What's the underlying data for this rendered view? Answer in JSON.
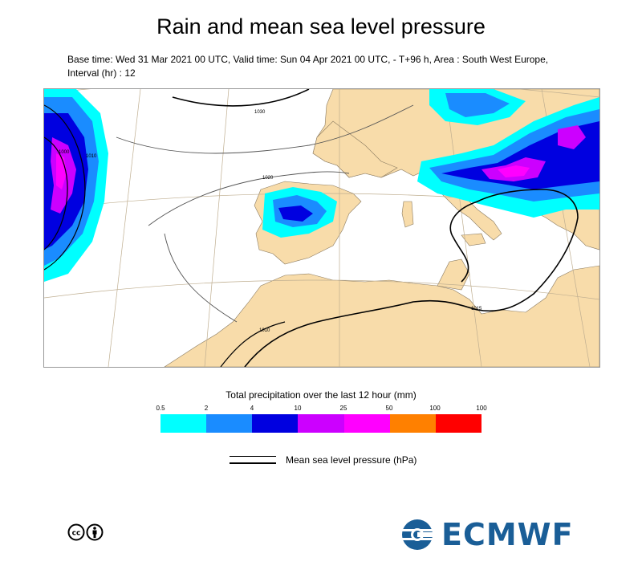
{
  "title": "Rain and mean sea level pressure",
  "subtitle": "Base time: Wed 31 Mar 2021 00 UTC, Valid time: Sun 04 Apr 2021 00 UTC, - T+96 h, Area : South West Europe, Interval (hr) : 12",
  "map": {
    "isobar_labels": [
      "1030",
      "1020",
      "1010",
      "1015",
      "1000",
      "1010"
    ],
    "colors": {
      "land": "#f8dcaa",
      "sea": "#ffffff",
      "isobar": "#000000"
    }
  },
  "legend": {
    "title": "Total precipitation over the last 12 hour (mm)",
    "ticks": [
      "0.5",
      "2",
      "4",
      "10",
      "25",
      "50",
      "100",
      "100"
    ],
    "colors": [
      "#00ffff",
      "#1a8cff",
      "#0000e0",
      "#cc00ff",
      "#ff00ff",
      "#ff8000",
      "#ff0000"
    ]
  },
  "pressure_legend": {
    "label": "Mean sea level pressure (hPa)"
  },
  "logo": {
    "text": "ECMWF",
    "color": "#1a5e97"
  }
}
